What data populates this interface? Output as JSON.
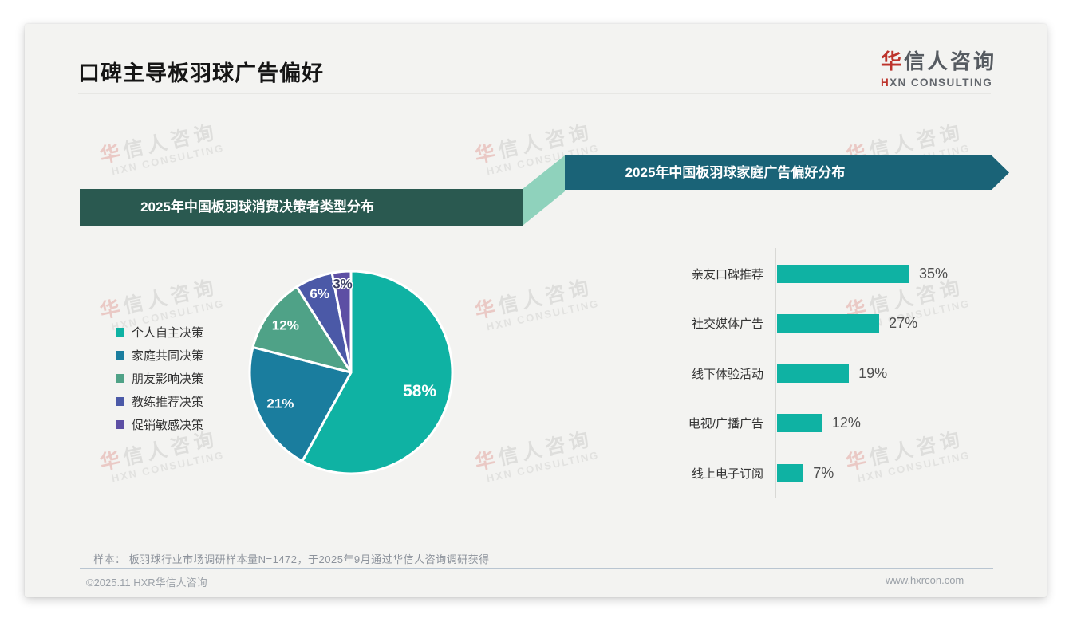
{
  "page": {
    "title": "口碑主导板羽球广告偏好",
    "logo": {
      "cn_highlight": "华",
      "cn_rest": "信人咨询",
      "en_highlight": "H",
      "en_rest": "XN CONSULTING"
    },
    "watermark": {
      "cn_highlight": "华",
      "cn_rest": "信人咨询",
      "en": "HXN CONSULTING"
    },
    "footnote": "样本： 板羽球行业市场调研样本量N=1472，于2025年9月通过华信人咨询调研获得",
    "copyright": "©2025.11 HXR华信人咨询",
    "website": "www.hxrcon.com"
  },
  "theme": {
    "banner_left": "#2A5950",
    "banner_right": "#1A6377",
    "connector": "#8FD2BC",
    "accent_teal": "#0FB2A3",
    "logo_red": "#BD332B"
  },
  "chart_data": [
    {
      "type": "pie",
      "title": "2025年中国板羽球消费决策者类型分布",
      "labels": [
        "个人自主决策",
        "家庭共同决策",
        "朋友影响决策",
        "教练推荐决策",
        "促销敏感决策"
      ],
      "values": [
        58,
        21,
        12,
        6,
        3
      ],
      "colors": [
        "#0FB2A3",
        "#1A7D9E",
        "#4FA287",
        "#4B59A7",
        "#5D4FA4"
      ],
      "value_label_format": "percent",
      "start_angle_deg": 0,
      "direction": "clockwise",
      "legend_position": "left",
      "slice_gap_color": "#ffffff"
    },
    {
      "type": "bar",
      "title": "2025年中国板羽球家庭广告偏好分布",
      "orientation": "horizontal",
      "categories": [
        "亲友口碑推荐",
        "社交媒体广告",
        "线下体验活动",
        "电视/广播广告",
        "线上电子订阅"
      ],
      "values": [
        35,
        27,
        19,
        12,
        7
      ],
      "bar_color": "#0FB2A3",
      "value_label_format": "percent",
      "xlim": [
        0,
        35
      ],
      "grid": false
    }
  ]
}
